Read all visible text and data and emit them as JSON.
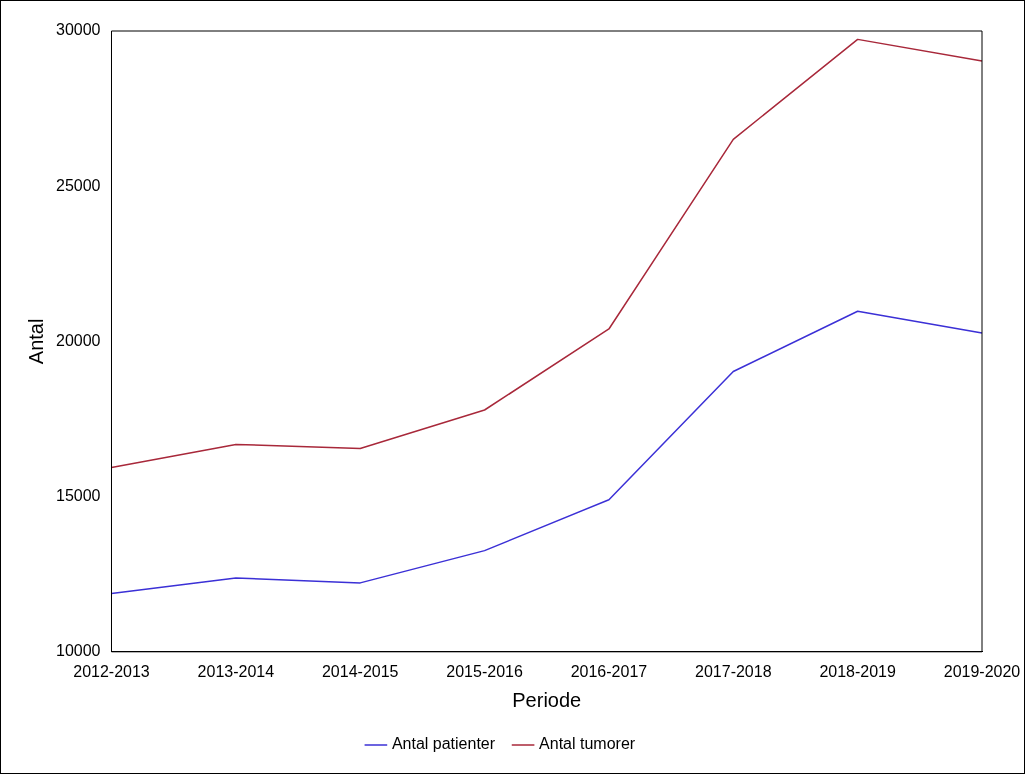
{
  "chart_data": {
    "type": "line",
    "xlabel": "Periode",
    "ylabel": "Antal",
    "categories": [
      "2012-2013",
      "2013-2014",
      "2014-2015",
      "2015-2016",
      "2016-2017",
      "2017-2018",
      "2018-2019",
      "2019-2020"
    ],
    "series": [
      {
        "name": "Antal patienter",
        "color": "#3b30d6",
        "values": [
          11880,
          12380,
          12220,
          13260,
          14900,
          19030,
          20970,
          20270
        ]
      },
      {
        "name": "Antal tumorer",
        "color": "#a8283a",
        "values": [
          15940,
          16680,
          16550,
          17790,
          20400,
          26510,
          29730,
          29030
        ]
      }
    ],
    "ylim": [
      10000,
      30000
    ],
    "yticks": [
      10000,
      15000,
      20000,
      25000,
      30000
    ],
    "grid": false,
    "legend": "bottom",
    "marker": "none",
    "line_style": "solid"
  }
}
